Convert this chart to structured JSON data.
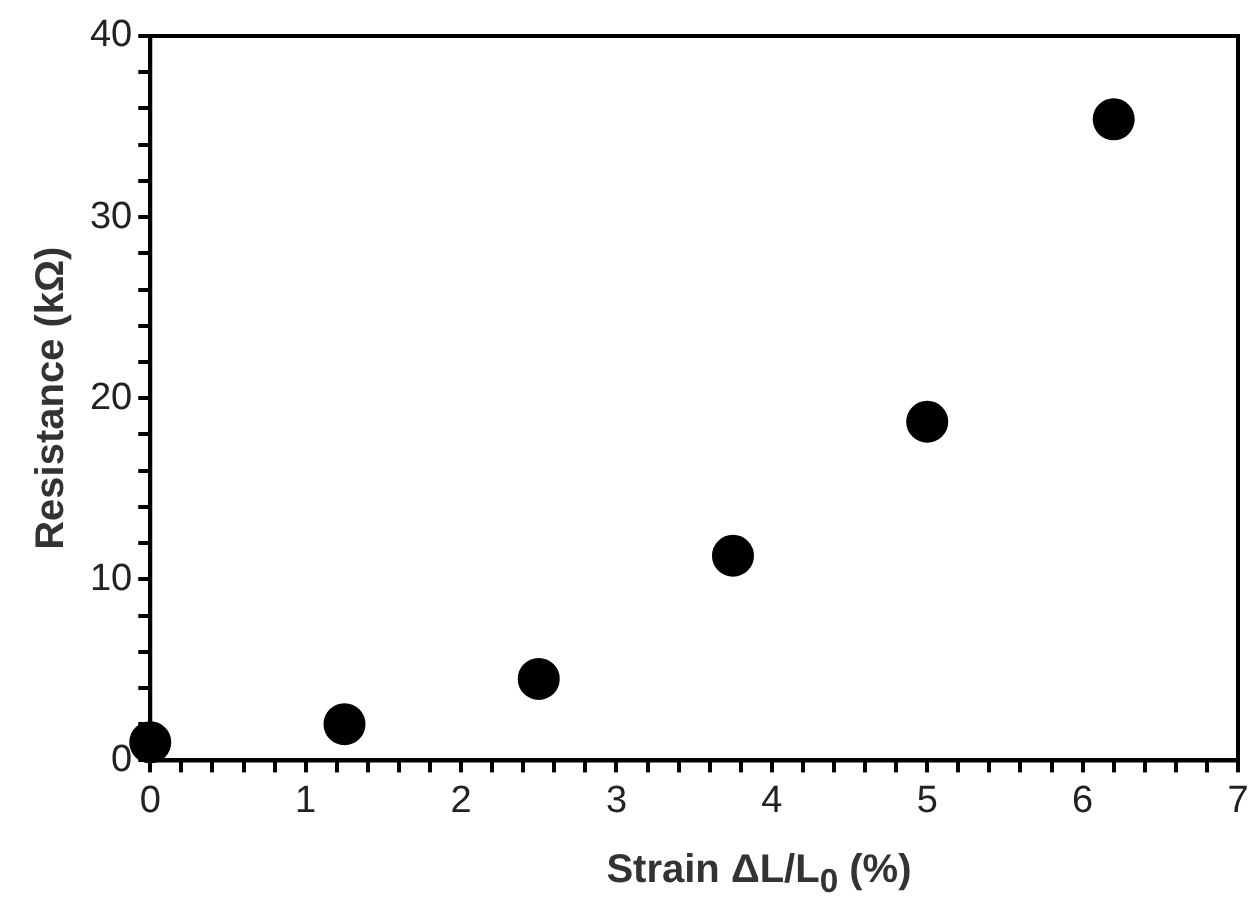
{
  "chart_data": {
    "type": "scatter",
    "xlabel": "Strain ΔL/L$_{0}$ (%)",
    "ylabel": "Resistance (kΩ)",
    "x": [
      0,
      1.25,
      2.5,
      3.75,
      5,
      6.2
    ],
    "series": [
      {
        "color": "#000000",
        "values": [
          1.0,
          2.0,
          4.5,
          11.3,
          18.7,
          35.4
        ]
      }
    ],
    "xlim": [
      0,
      7
    ],
    "xticks": [
      0,
      {
        "value": 0.2,
        "label": null
      },
      {
        "value": 0.4,
        "label": null
      },
      {
        "value": 0.6,
        "label": null
      },
      {
        "value": 0.8,
        "label": null
      },
      1,
      {
        "value": 1.2,
        "label": null
      },
      {
        "value": 1.4,
        "label": null
      },
      {
        "value": 1.6,
        "label": null
      },
      {
        "value": 1.8,
        "label": null
      },
      2,
      {
        "value": 2.2,
        "label": null
      },
      {
        "value": 2.4,
        "label": null
      },
      {
        "value": 2.6,
        "label": null
      },
      {
        "value": 2.8,
        "label": null
      },
      3,
      {
        "value": 3.2,
        "label": null
      },
      {
        "value": 3.4,
        "label": null
      },
      {
        "value": 3.6,
        "label": null
      },
      {
        "value": 3.8,
        "label": null
      },
      4,
      {
        "value": 4.2,
        "label": null
      },
      {
        "value": 4.4,
        "label": null
      },
      {
        "value": 4.6,
        "label": null
      },
      {
        "value": 4.8,
        "label": null
      },
      5,
      {
        "value": 5.2,
        "label": null
      },
      {
        "value": 5.4,
        "label": null
      },
      {
        "value": 5.6,
        "label": null
      },
      {
        "value": 5.8,
        "label": null
      },
      6,
      {
        "value": 6.2,
        "label": null
      },
      {
        "value": 6.4,
        "label": null
      },
      {
        "value": 6.6,
        "label": null
      },
      {
        "value": 6.8,
        "label": null
      },
      7
    ],
    "ylim": [
      0,
      40
    ],
    "yticks": [
      0,
      {
        "value": 2,
        "label": null
      },
      {
        "value": 4,
        "label": null
      },
      {
        "value": 6,
        "label": null
      },
      {
        "value": 8,
        "label": null
      },
      10,
      {
        "value": 12,
        "label": null
      },
      {
        "value": 14,
        "label": null
      },
      {
        "value": 16,
        "label": null
      },
      {
        "value": 18,
        "label": null
      },
      20,
      {
        "value": 22,
        "label": null
      },
      {
        "value": 24,
        "label": null
      },
      {
        "value": 26,
        "label": null
      },
      {
        "value": 28,
        "label": null
      },
      30,
      {
        "value": 32,
        "label": null
      },
      {
        "value": 34,
        "label": null
      },
      {
        "value": 36,
        "label": null
      },
      {
        "value": 38,
        "label": null
      },
      40
    ],
    "grid": false,
    "legend": false,
    "marker": "circle"
  }
}
